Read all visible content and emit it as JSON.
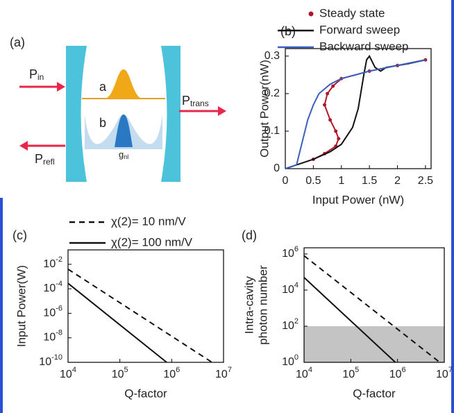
{
  "diagram": {
    "label": "(a)",
    "p_in": {
      "text": "P",
      "sub": "in"
    },
    "mode_a": "a",
    "mode_b": "b",
    "coupling": {
      "text": "g",
      "sub": "nl"
    },
    "p_refl": {
      "text": "P",
      "sub": "refl"
    },
    "p_trans": {
      "text": "P",
      "sub": "trans"
    }
  },
  "chart_data": [
    {
      "type": "line",
      "title": "(b)",
      "xlabel": "Input Power (nW)",
      "ylabel": [
        "Output Power(nW)"
      ],
      "xlim": [
        0,
        2.6
      ],
      "ylim": [
        0,
        0.32
      ],
      "xticks": [
        0,
        0.5,
        1,
        1.5,
        2,
        2.5
      ],
      "yticks": [
        0,
        0.1,
        0.2,
        0.3
      ],
      "log": false,
      "legend": "top",
      "series": [
        {
          "name": "Steady state",
          "color": "#b0182a",
          "style": "dots",
          "x": [
            0.5,
            0.7,
            0.9,
            0.95,
            0.9,
            0.8,
            0.7,
            0.75,
            0.85,
            1.0,
            1.5,
            2.0,
            2.5
          ],
          "values": [
            0.025,
            0.04,
            0.06,
            0.08,
            0.1,
            0.13,
            0.17,
            0.2,
            0.22,
            0.24,
            0.26,
            0.275,
            0.29
          ]
        },
        {
          "name": "Forward sweep",
          "color": "#111111",
          "style": "solid",
          "x": [
            0,
            0.2,
            0.5,
            0.8,
            1.0,
            1.2,
            1.3,
            1.4,
            1.45,
            1.5,
            1.6,
            1.7,
            1.8,
            2.0,
            2.2,
            2.5
          ],
          "values": [
            0,
            0.01,
            0.025,
            0.045,
            0.065,
            0.11,
            0.16,
            0.25,
            0.29,
            0.3,
            0.27,
            0.26,
            0.27,
            0.275,
            0.28,
            0.29
          ]
        },
        {
          "name": "Backward sweep",
          "color": "#3a5fc0",
          "style": "solid",
          "x": [
            0,
            0.2,
            0.3,
            0.4,
            0.5,
            0.6,
            0.8,
            1.0,
            1.5,
            2.0,
            2.5
          ],
          "values": [
            0,
            0.01,
            0.07,
            0.13,
            0.17,
            0.2,
            0.225,
            0.24,
            0.26,
            0.275,
            0.29
          ]
        }
      ]
    },
    {
      "type": "line",
      "title": "(c)",
      "xlabel": "Q-factor",
      "ylabel": [
        "Input Power(W)"
      ],
      "xlim": [
        10000,
        10000000
      ],
      "ylim": [
        1e-10,
        0.15
      ],
      "log": true,
      "legend": "top",
      "xticks": [
        {
          "value": 10000,
          "label": "10",
          "exponent": "4"
        },
        {
          "value": 100000,
          "label": "10",
          "exponent": "5"
        },
        {
          "value": 1000000,
          "label": "10",
          "exponent": "6"
        },
        {
          "value": 10000000,
          "label": "10",
          "exponent": "7"
        }
      ],
      "yticks": [
        {
          "value": 0.01,
          "label": "10",
          "exponent": "-2"
        },
        {
          "value": 0.0001,
          "label": "10",
          "exponent": "-4"
        },
        {
          "value": 1e-06,
          "label": "10",
          "exponent": "-6"
        },
        {
          "value": 1e-08,
          "label": "10",
          "exponent": "-8"
        },
        {
          "value": 1e-10,
          "label": "10",
          "exponent": "-10"
        }
      ],
      "series": [
        {
          "name": "χ(2)= 10 nm/V",
          "color": "#111111",
          "style": "dashed",
          "x": [
            10000,
            6000000
          ],
          "values": [
            0.004,
            1e-10
          ]
        },
        {
          "name": "χ(2)= 100 nm/V",
          "color": "#111111",
          "style": "solid",
          "x": [
            10000,
            800000
          ],
          "values": [
            0.00028,
            1e-10
          ]
        }
      ]
    },
    {
      "type": "line",
      "title": "(d)",
      "xlabel": "Q-factor",
      "ylabel": [
        "Intra-cavity",
        "photon number"
      ],
      "xlim": [
        10000,
        10000000
      ],
      "ylim": [
        1,
        2200000
      ],
      "log": true,
      "xticks": [
        {
          "value": 10000,
          "label": "10",
          "exponent": "4"
        },
        {
          "value": 100000,
          "label": "10",
          "exponent": "5"
        },
        {
          "value": 1000000,
          "label": "10",
          "exponent": "6"
        },
        {
          "value": 10000000,
          "label": "10",
          "exponent": "7"
        }
      ],
      "yticks": [
        {
          "value": 1,
          "label": "10",
          "exponent": "0"
        },
        {
          "value": 100,
          "label": "10",
          "exponent": "2"
        },
        {
          "value": 10000,
          "label": "10",
          "exponent": "4"
        },
        {
          "value": 1000000,
          "label": "10",
          "exponent": "6"
        }
      ],
      "shaded_band": [
        1,
        100
      ],
      "band_color": "#c4c4c4",
      "series": [
        {
          "color": "#111111",
          "style": "dashed",
          "x": [
            10000,
            8000000
          ],
          "values": [
            800000,
            1
          ]
        },
        {
          "color": "#111111",
          "style": "solid",
          "x": [
            10000,
            900000
          ],
          "values": [
            50000,
            1
          ]
        }
      ]
    }
  ]
}
